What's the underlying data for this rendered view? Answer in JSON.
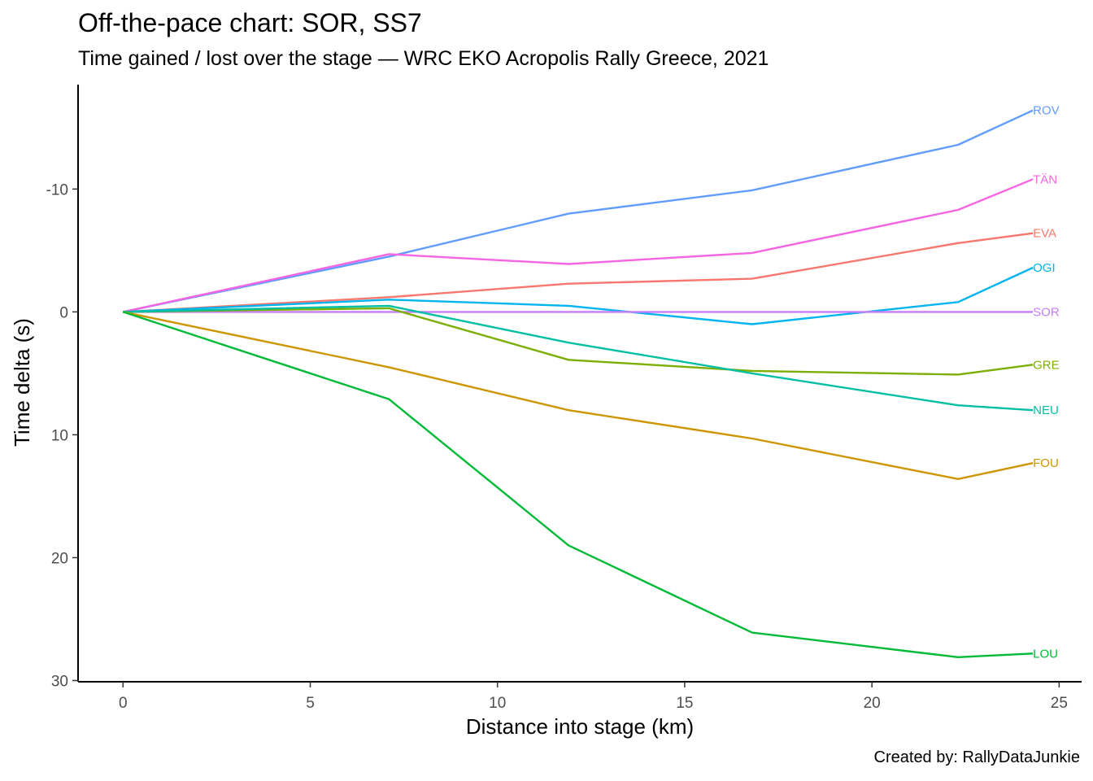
{
  "chart_data": {
    "type": "line",
    "title": "Off-the-pace chart: SOR, SS7",
    "subtitle": "Time gained / lost over the stage — WRC EKO Acropolis Rally Greece, 2021",
    "caption": "Created by: RallyDataJunkie",
    "xlabel": "Distance into stage (km)",
    "ylabel": "Time delta (s)",
    "xlim": [
      -1.2,
      25.6
    ],
    "ylim": [
      30.1,
      -18.5
    ],
    "y_reversed": true,
    "grid": false,
    "legend": "none (labels at line ends)",
    "x_ticks": [
      0,
      5,
      10,
      15,
      20,
      25
    ],
    "x_tick_labels": [
      "0",
      "5",
      "10",
      "15",
      "20",
      "25"
    ],
    "y_ticks": [
      -10,
      0,
      10,
      20,
      30
    ],
    "y_tick_labels": [
      "-10",
      "0",
      "10",
      "20",
      "30"
    ],
    "x": [
      0,
      7.1,
      11.9,
      16.8,
      22.3,
      24.3
    ],
    "series": [
      {
        "name": "ROV",
        "color": "#619CFF",
        "values": [
          0,
          -4.5,
          -8.0,
          -9.9,
          -13.6,
          -16.4
        ]
      },
      {
        "name": "TÄN",
        "color": "#F564E3",
        "values": [
          0,
          -4.7,
          -3.9,
          -4.8,
          -8.3,
          -10.8
        ]
      },
      {
        "name": "EVA",
        "color": "#F8766D",
        "values": [
          0,
          -1.2,
          -2.3,
          -2.7,
          -5.6,
          -6.4
        ]
      },
      {
        "name": "OGI",
        "color": "#00B4EF",
        "values": [
          0,
          -1.0,
          -0.5,
          1.0,
          -0.8,
          -3.6
        ]
      },
      {
        "name": "SOR",
        "color": "#C77CFF",
        "values": [
          0,
          0,
          0,
          0,
          0,
          0
        ]
      },
      {
        "name": "GRE",
        "color": "#7CAE00",
        "values": [
          0,
          -0.3,
          3.9,
          4.8,
          5.1,
          4.3
        ]
      },
      {
        "name": "NEU",
        "color": "#00BFA4",
        "values": [
          0,
          -0.5,
          2.5,
          5.0,
          7.6,
          8.0
        ]
      },
      {
        "name": "FOU",
        "color": "#CD9600",
        "values": [
          0,
          4.5,
          8.0,
          10.3,
          13.6,
          12.3
        ]
      },
      {
        "name": "LOU",
        "color": "#00BA38",
        "values": [
          0,
          7.1,
          19.0,
          26.1,
          28.1,
          27.8
        ]
      }
    ]
  }
}
